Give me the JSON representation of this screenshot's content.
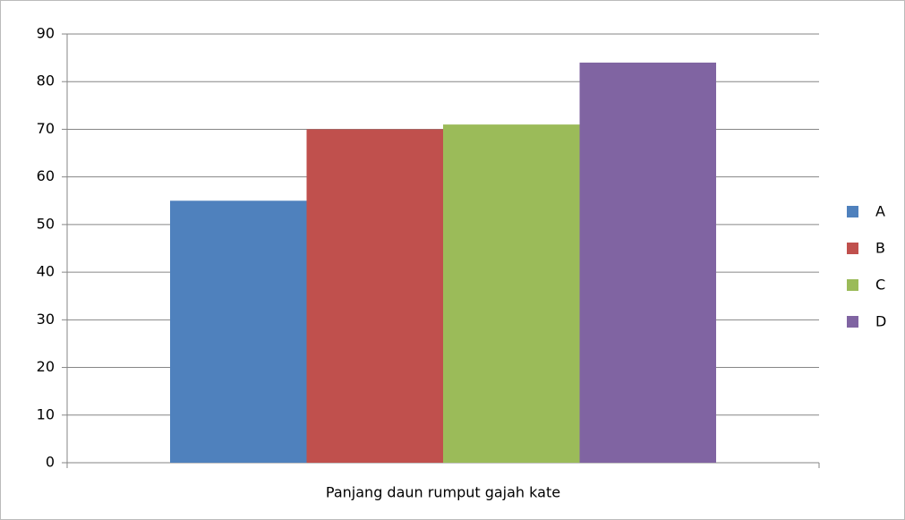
{
  "chart_data": {
    "type": "bar",
    "categories": [
      "Panjang daun rumput gajah kate"
    ],
    "series": [
      {
        "name": "A",
        "color": "#4f81bd",
        "values": [
          55
        ]
      },
      {
        "name": "B",
        "color": "#c0504d",
        "values": [
          70
        ]
      },
      {
        "name": "C",
        "color": "#9bbb59",
        "values": [
          71
        ]
      },
      {
        "name": "D",
        "color": "#8064a2",
        "values": [
          84
        ]
      }
    ],
    "ylim": [
      0,
      90
    ],
    "yticks": [
      0,
      10,
      20,
      30,
      40,
      50,
      60,
      70,
      80,
      90
    ],
    "grid": true,
    "legend": "right"
  }
}
